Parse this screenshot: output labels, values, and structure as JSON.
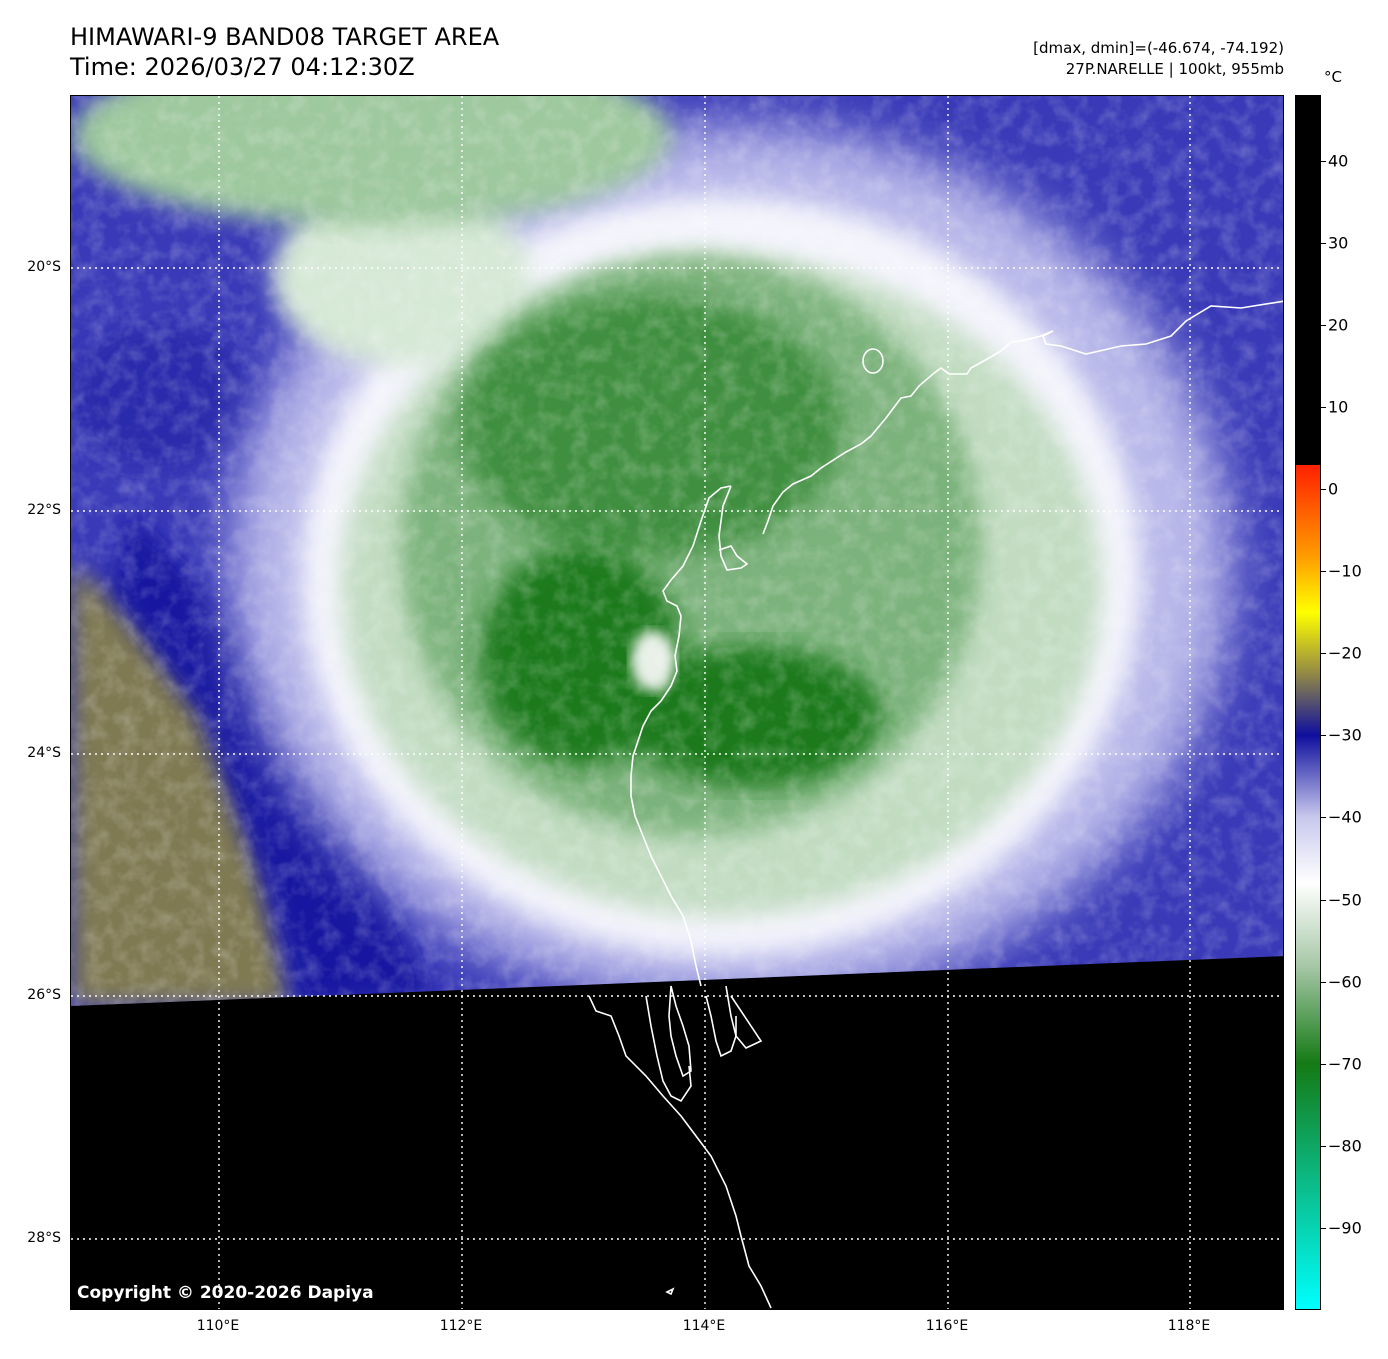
{
  "title": {
    "line1": "HIMAWARI-9 BAND08 TARGET AREA",
    "line2": "Time: 2026/03/27 04:12:30Z"
  },
  "info": {
    "range": "[dmax, dmin]=(-46.674, -74.192)",
    "storm": "27P.NARELLE | 100kt, 955mb"
  },
  "map": {
    "lat_labels": [
      {
        "value": -20,
        "text": "20°S"
      },
      {
        "value": -22,
        "text": "22°S"
      },
      {
        "value": -24,
        "text": "24°S"
      },
      {
        "value": -26,
        "text": "26°S"
      },
      {
        "value": -28,
        "text": "28°S"
      }
    ],
    "lon_labels": [
      {
        "value": 110,
        "text": "110°E"
      },
      {
        "value": 112,
        "text": "112°E"
      },
      {
        "value": 114,
        "text": "114°E"
      },
      {
        "value": 116,
        "text": "116°E"
      },
      {
        "value": 118,
        "text": "118°E"
      }
    ],
    "copyright": "Copyright © 2020-2026 Dapiya"
  },
  "colorbar": {
    "unit": "°C",
    "range": [
      -100,
      48
    ],
    "ticks": [
      {
        "value": 40,
        "text": "40"
      },
      {
        "value": 30,
        "text": "30"
      },
      {
        "value": 20,
        "text": "20"
      },
      {
        "value": 10,
        "text": "10"
      },
      {
        "value": 0,
        "text": "0"
      },
      {
        "value": -10,
        "text": "−10"
      },
      {
        "value": -20,
        "text": "−20"
      },
      {
        "value": -30,
        "text": "−30"
      },
      {
        "value": -40,
        "text": "−40"
      },
      {
        "value": -50,
        "text": "−50"
      },
      {
        "value": -60,
        "text": "−60"
      },
      {
        "value": -70,
        "text": "−70"
      },
      {
        "value": -80,
        "text": "−80"
      },
      {
        "value": -90,
        "text": "−90"
      }
    ],
    "colors": {
      "warm": "#000000",
      "red": "#ff2000",
      "orange": "#ff9a00",
      "yellow": "#ffff00",
      "olive": "#9a9040",
      "navy": "#0f0f9e",
      "lavender": "#c8c8ee",
      "white": "#ffffff",
      "sage": "#a8c8a8",
      "green": "#157a15",
      "cyan": "#00ffff"
    }
  }
}
